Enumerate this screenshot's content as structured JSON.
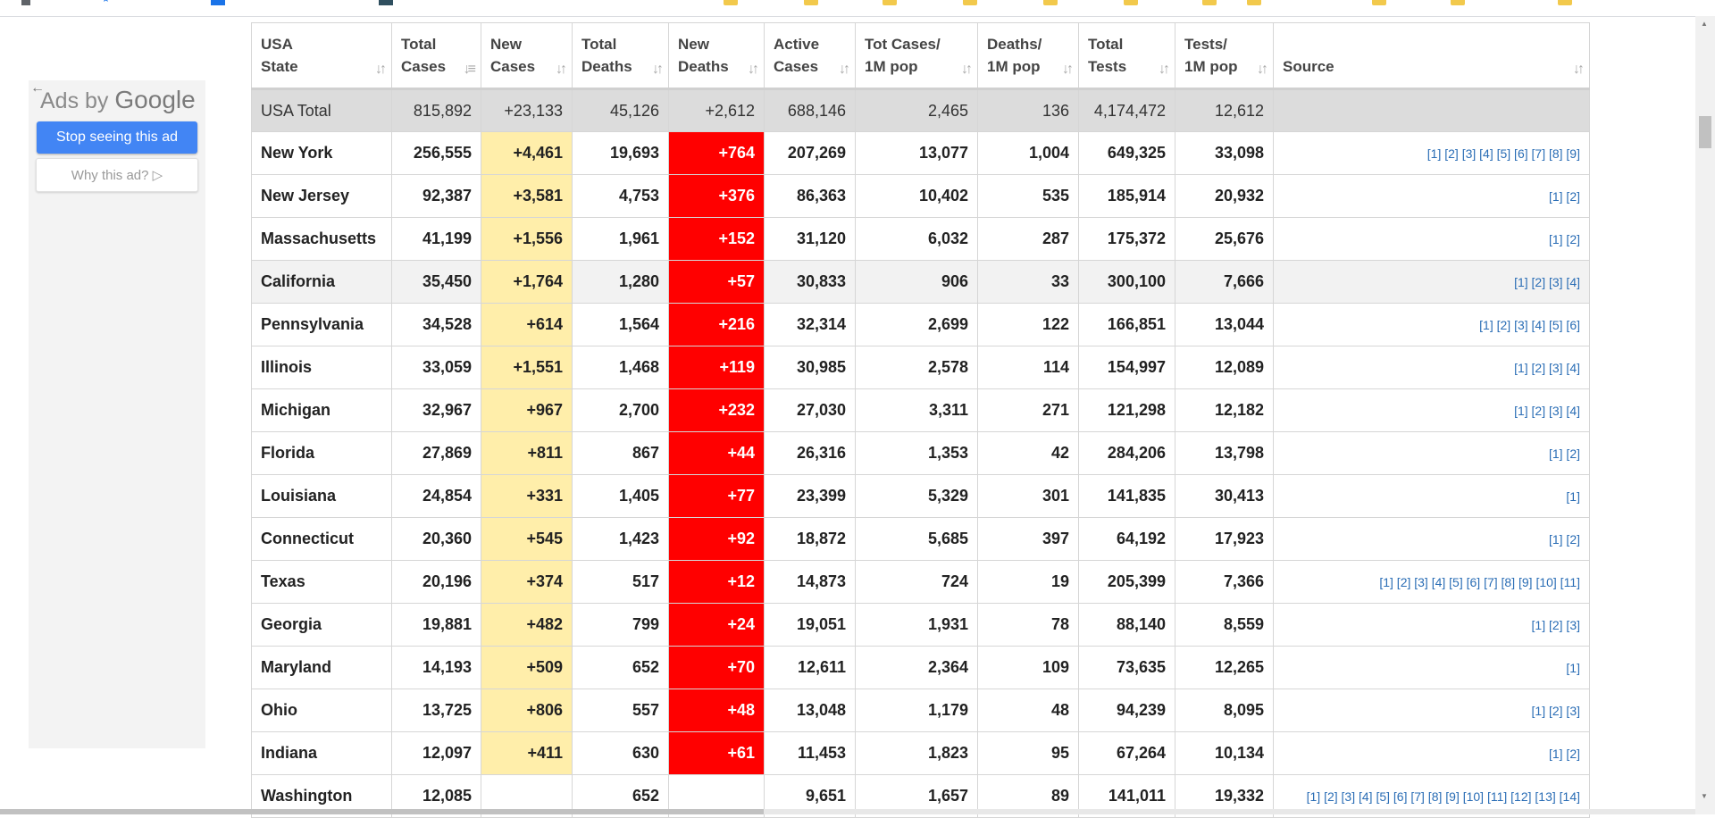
{
  "ad": {
    "brand_prefix": "Ads by",
    "brand": "Google",
    "stop_label": "Stop seeing this ad",
    "why_label": "Why this ad? ▷"
  },
  "table": {
    "headers": [
      {
        "line1": "USA",
        "line2": "State"
      },
      {
        "line1": "Total",
        "line2": "Cases"
      },
      {
        "line1": "New",
        "line2": "Cases"
      },
      {
        "line1": "Total",
        "line2": "Deaths"
      },
      {
        "line1": "New",
        "line2": "Deaths"
      },
      {
        "line1": "Active",
        "line2": "Cases"
      },
      {
        "line1": "Tot Cases/",
        "line2": "1M pop"
      },
      {
        "line1": "Deaths/",
        "line2": "1M pop"
      },
      {
        "line1": "Total",
        "line2": "Tests"
      },
      {
        "line1": "Tests/",
        "line2": "1M pop"
      },
      {
        "line1": "",
        "line2": "Source"
      }
    ],
    "total_row": [
      "USA Total",
      "815,892",
      "+23,133",
      "45,126",
      "+2,612",
      "688,146",
      "2,465",
      "136",
      "4,174,472",
      "12,612",
      ""
    ],
    "rows": [
      [
        "New York",
        "256,555",
        "+4,461",
        "19,693",
        "+764",
        "207,269",
        "13,077",
        "1,004",
        "649,325",
        "33,098",
        "[1] [2] [3] [4] [5] [6] [7] [8] [9]"
      ],
      [
        "New Jersey",
        "92,387",
        "+3,581",
        "4,753",
        "+376",
        "86,363",
        "10,402",
        "535",
        "185,914",
        "20,932",
        "[1] [2]"
      ],
      [
        "Massachusetts",
        "41,199",
        "+1,556",
        "1,961",
        "+152",
        "31,120",
        "6,032",
        "287",
        "175,372",
        "25,676",
        "[1] [2]"
      ],
      [
        "California",
        "35,450",
        "+1,764",
        "1,280",
        "+57",
        "30,833",
        "906",
        "33",
        "300,100",
        "7,666",
        "[1] [2] [3] [4]"
      ],
      [
        "Pennsylvania",
        "34,528",
        "+614",
        "1,564",
        "+216",
        "32,314",
        "2,699",
        "122",
        "166,851",
        "13,044",
        "[1] [2] [3] [4] [5] [6]"
      ],
      [
        "Illinois",
        "33,059",
        "+1,551",
        "1,468",
        "+119",
        "30,985",
        "2,578",
        "114",
        "154,997",
        "12,089",
        "[1] [2] [3] [4]"
      ],
      [
        "Michigan",
        "32,967",
        "+967",
        "2,700",
        "+232",
        "27,030",
        "3,311",
        "271",
        "121,298",
        "12,182",
        "[1] [2] [3] [4]"
      ],
      [
        "Florida",
        "27,869",
        "+811",
        "867",
        "+44",
        "26,316",
        "1,353",
        "42",
        "284,206",
        "13,798",
        "[1] [2]"
      ],
      [
        "Louisiana",
        "24,854",
        "+331",
        "1,405",
        "+77",
        "23,399",
        "5,329",
        "301",
        "141,835",
        "30,413",
        "[1]"
      ],
      [
        "Connecticut",
        "20,360",
        "+545",
        "1,423",
        "+92",
        "18,872",
        "5,685",
        "397",
        "64,192",
        "17,923",
        "[1] [2]"
      ],
      [
        "Texas",
        "20,196",
        "+374",
        "517",
        "+12",
        "14,873",
        "724",
        "19",
        "205,399",
        "7,366",
        "[1] [2] [3] [4] [5] [6] [7] [8] [9] [10] [11]"
      ],
      [
        "Georgia",
        "19,881",
        "+482",
        "799",
        "+24",
        "19,051",
        "1,931",
        "78",
        "88,140",
        "8,559",
        "[1] [2] [3]"
      ],
      [
        "Maryland",
        "14,193",
        "+509",
        "652",
        "+70",
        "12,611",
        "2,364",
        "109",
        "73,635",
        "12,265",
        "[1]"
      ],
      [
        "Ohio",
        "13,725",
        "+806",
        "557",
        "+48",
        "13,048",
        "1,179",
        "48",
        "94,239",
        "8,095",
        "[1] [2] [3]"
      ],
      [
        "Indiana",
        "12,097",
        "+411",
        "630",
        "+61",
        "11,453",
        "1,823",
        "95",
        "67,264",
        "10,134",
        "[1] [2]"
      ],
      [
        "Washington",
        "12,085",
        "",
        "652",
        "",
        "9,651",
        "1,657",
        "89",
        "141,011",
        "19,332",
        "[1] [2] [3] [4] [5] [6] [7] [8] [9] [10] [11] [12] [13] [14]"
      ]
    ],
    "highlighted_row": 3
  },
  "colors": {
    "new_cases_bg": "#ffeeaa",
    "new_deaths_bg": "#ff0000",
    "total_row_bg": "#dcdcdc",
    "link": "#2a6db5",
    "ad_button": "#4285f4"
  }
}
